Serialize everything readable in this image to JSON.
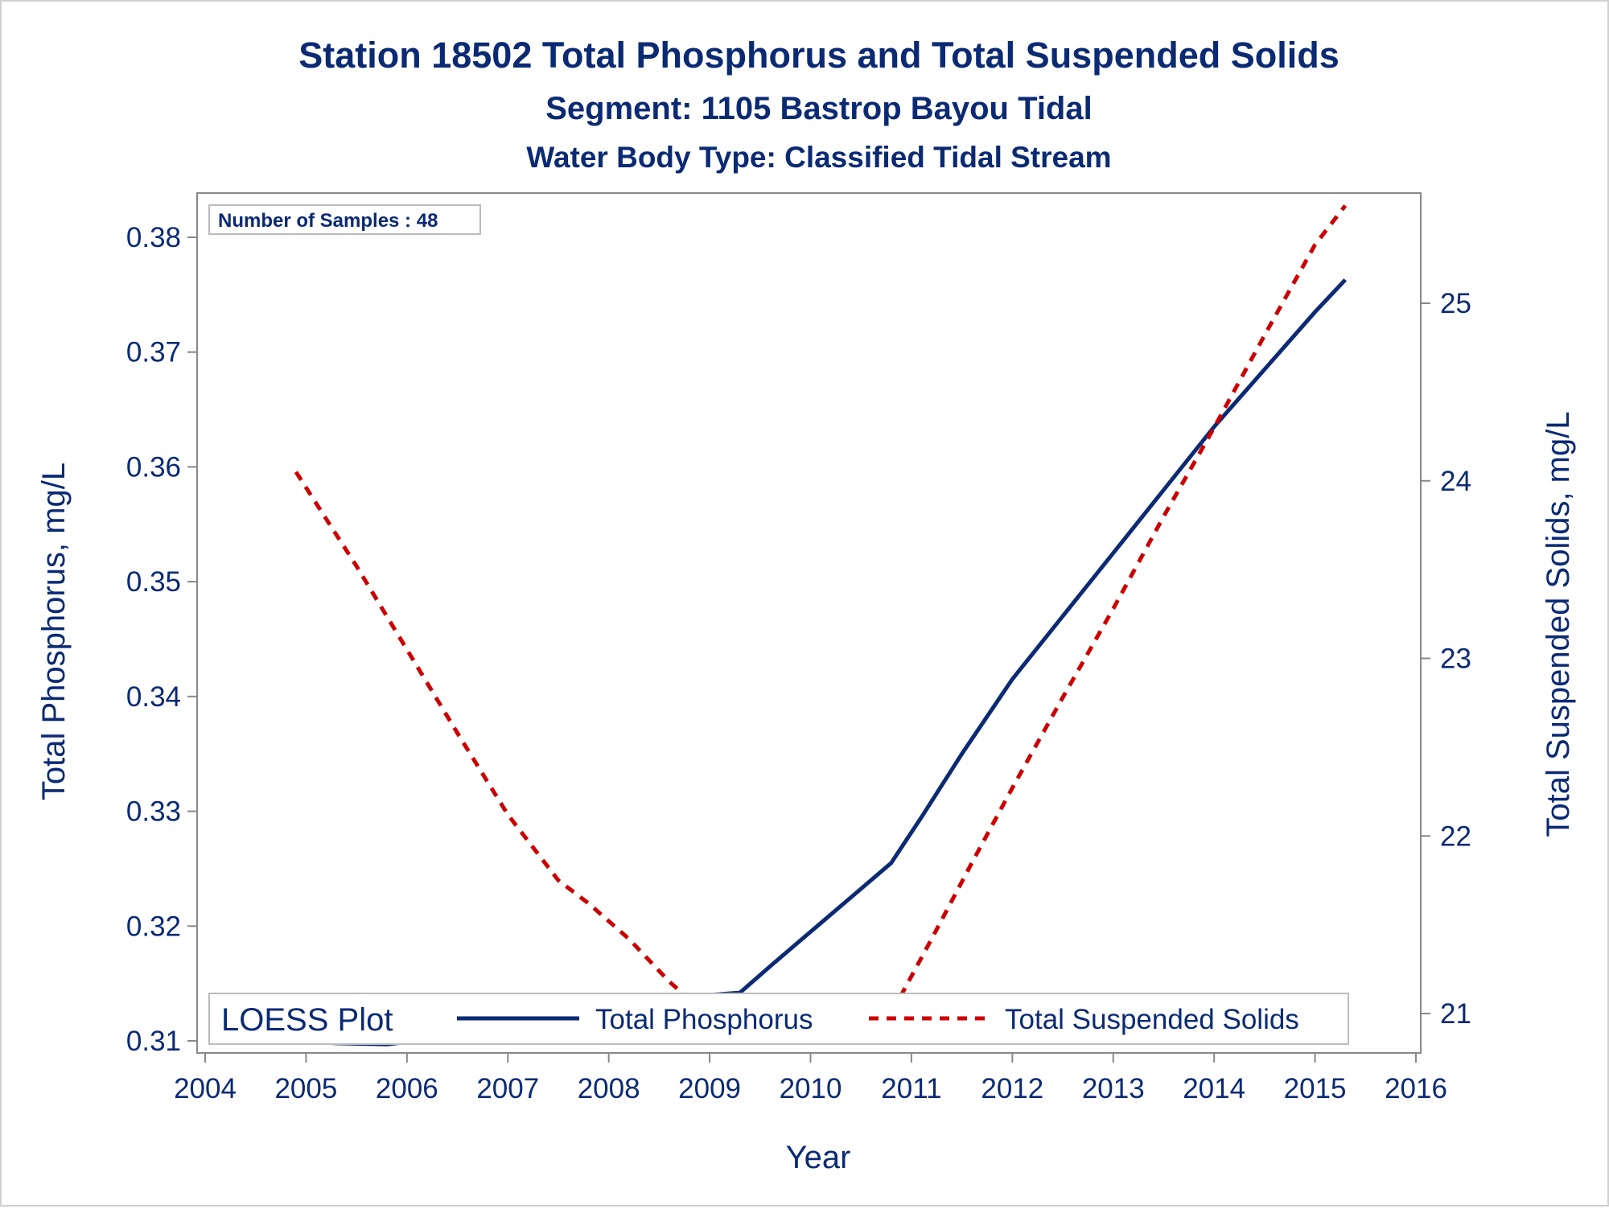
{
  "chart_data": {
    "type": "line",
    "title": "Station 18502  Total Phosphorus and Total Suspended Solids",
    "subtitle": "Segment: 1105  Bastrop Bayou Tidal",
    "subtitle2": "Water Body Type: Classified Tidal Stream",
    "xlabel": "Year",
    "ylabel": "Total Phosphorus, mg/L",
    "y2label": "Total Suspended Solids, mg/L",
    "xlim": [
      2004,
      2016
    ],
    "ylim": [
      0.31,
      0.3845
    ],
    "y2lim": [
      20.82,
      25.55
    ],
    "xticks": [
      "2004",
      "2005",
      "2006",
      "2007",
      "2008",
      "2009",
      "2010",
      "2011",
      "2012",
      "2013",
      "2014",
      "2015",
      "2016"
    ],
    "yticks": [
      "0.31",
      "0.32",
      "0.33",
      "0.34",
      "0.35",
      "0.36",
      "0.37",
      "0.38"
    ],
    "y2ticks": [
      "21",
      "22",
      "23",
      "24",
      "25"
    ],
    "grid": false,
    "inset": "Number of Samples : 48",
    "legend": {
      "title": "LOESS Plot",
      "position": "bottom-inside",
      "entries": [
        "Total Phosphorus",
        "Total Suspended Solids"
      ]
    },
    "series": [
      {
        "name": "Total Phosphorus",
        "axis": "left",
        "color": "#0b2a74",
        "dash": "solid",
        "x": [
          2004.9,
          2005.3,
          2005.8,
          2006.2,
          2006.6,
          2007.0,
          2007.4,
          2007.8,
          2008.2,
          2008.6,
          2009.0,
          2009.3,
          2009.6,
          2010.0,
          2010.4,
          2010.8,
          2011.1,
          2011.5,
          2012.0,
          2012.5,
          2013.0,
          2013.5,
          2014.0,
          2014.5,
          2015.0,
          2015.3
        ],
        "y": [
          0.31,
          0.3098,
          0.3097,
          0.3101,
          0.3107,
          0.3115,
          0.3124,
          0.3132,
          0.3135,
          0.3137,
          0.314,
          0.3142,
          0.3165,
          0.3195,
          0.3225,
          0.3255,
          0.3295,
          0.335,
          0.3415,
          0.347,
          0.3525,
          0.358,
          0.3635,
          0.3685,
          0.3735,
          0.3763
        ]
      },
      {
        "name": "Total Suspended Solids",
        "axis": "right",
        "color": "#cc0000",
        "dash": "dashed",
        "x": [
          2004.9,
          2005.5,
          2006.0,
          2006.5,
          2007.0,
          2007.5,
          2007.8,
          2008.2,
          2008.6,
          2009.0,
          2009.3,
          2009.6,
          2010.0,
          2010.4,
          2010.8,
          2011.2,
          2011.6,
          2012.0,
          2012.5,
          2013.0,
          2013.5,
          2014.0,
          2014.5,
          2015.0,
          2015.3
        ],
        "y": [
          24.05,
          23.52,
          23.05,
          22.58,
          22.12,
          21.75,
          21.62,
          21.42,
          21.18,
          20.98,
          20.84,
          20.88,
          20.93,
          20.96,
          21.0,
          21.42,
          21.85,
          22.27,
          22.78,
          23.28,
          23.8,
          24.3,
          24.82,
          25.33,
          25.55
        ]
      }
    ]
  }
}
